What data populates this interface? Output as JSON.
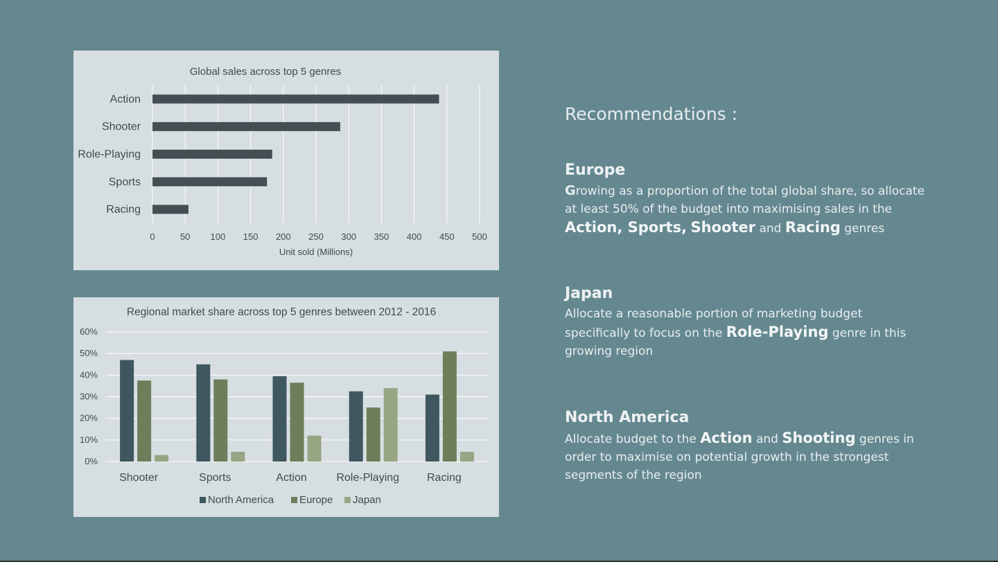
{
  "chart_data": [
    {
      "type": "bar",
      "orientation": "horizontal",
      "title": "Global sales across top 5 genres",
      "xlabel": "Unit sold (Millions)",
      "ylabel": "",
      "categories": [
        "Action",
        "Shooter",
        "Role-Playing",
        "Sports",
        "Racing"
      ],
      "values": [
        438,
        287,
        183,
        175,
        55
      ],
      "xlim": [
        0,
        500
      ],
      "xticks": [
        "0",
        "50",
        "100",
        "150",
        "200",
        "250",
        "300",
        "350",
        "400",
        "450",
        "500"
      ],
      "grid": true,
      "color": "#434f53"
    },
    {
      "type": "bar",
      "title": "Regional market share across top 5 genres between 2012 - 2016",
      "xlabel": "",
      "ylabel": "",
      "categories": [
        "Shooter",
        "Sports",
        "Action",
        "Role-Playing",
        "Racing"
      ],
      "series": [
        {
          "name": "North America",
          "values": [
            0.47,
            0.45,
            0.395,
            0.325,
            0.31
          ],
          "color": "#3f575e"
        },
        {
          "name": "Europe",
          "values": [
            0.375,
            0.38,
            0.365,
            0.25,
            0.51
          ],
          "color": "#6e7e5b"
        },
        {
          "name": "Japan",
          "values": [
            0.03,
            0.045,
            0.12,
            0.34,
            0.045
          ],
          "color": "#97a584"
        }
      ],
      "ylim": [
        0,
        0.6
      ],
      "yticks": [
        "0%",
        "10%",
        "20%",
        "30%",
        "40%",
        "50%",
        "60%"
      ],
      "grid": true,
      "legend": "bottom"
    }
  ],
  "recommendations": {
    "title": "Recommendations :",
    "europe": {
      "heading": "Europe",
      "p1_initial": "G",
      "p1": "rowing as a proportion of the total global share, so allocate at least 50% of the budget into maximising sales in the ",
      "k1": "Action, Sports,",
      "k2": "Shooter",
      "p2": " and ",
      "k3": "Racing",
      "p3": " genres"
    },
    "japan": {
      "heading": "Japan",
      "p1": "Allocate a reasonable portion of marketing budget specifically to focus on the ",
      "k1": "Role-Playing",
      "p2": " genre in this growing region"
    },
    "north_america": {
      "heading": "North America",
      "p1": "Allocate budget to the ",
      "k1": "Action",
      "p2": " and ",
      "k2": "Shooting",
      "p3": " genres in order to maximise on potential growth in the strongest segments of the region"
    }
  }
}
